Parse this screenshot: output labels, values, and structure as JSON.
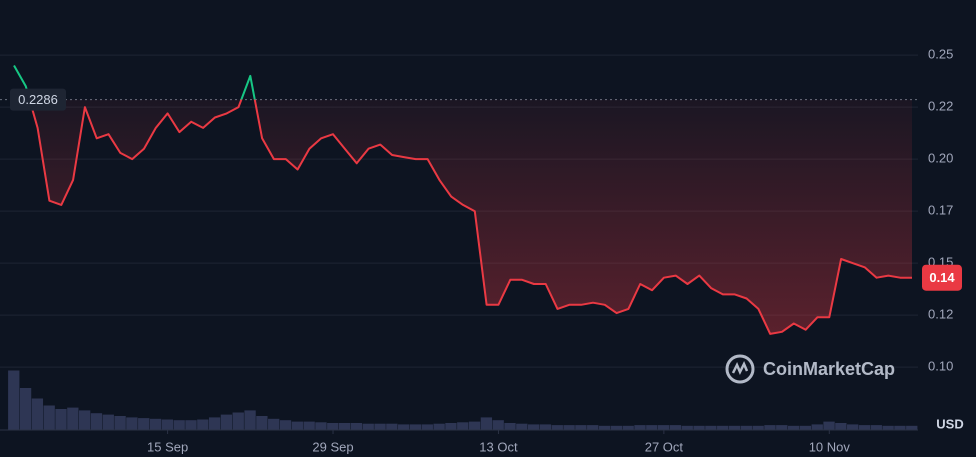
{
  "chart_data": {
    "type": "line",
    "categories": [
      null,
      null,
      null,
      null,
      null,
      null,
      null,
      null,
      null,
      null,
      null,
      null,
      null,
      "15 Sep",
      null,
      null,
      null,
      null,
      null,
      null,
      null,
      null,
      null,
      null,
      null,
      null,
      null,
      "29 Sep",
      null,
      null,
      null,
      null,
      null,
      null,
      null,
      null,
      null,
      null,
      null,
      null,
      null,
      "13 Oct",
      null,
      null,
      null,
      null,
      null,
      null,
      null,
      null,
      null,
      null,
      null,
      null,
      null,
      "27 Oct",
      null,
      null,
      null,
      null,
      null,
      null,
      null,
      null,
      null,
      null,
      null,
      null,
      null,
      "10 Nov",
      null,
      null,
      null,
      null,
      null,
      null,
      null
    ],
    "series": [
      {
        "values": [
          0.245,
          0.235,
          0.215,
          0.18,
          0.178,
          0.19,
          0.225,
          0.21,
          0.212,
          0.203,
          0.2,
          0.205,
          0.215,
          0.222,
          0.213,
          0.218,
          0.215,
          0.22,
          0.222,
          0.225,
          0.24,
          0.21,
          0.2,
          0.2,
          0.195,
          0.205,
          0.21,
          0.212,
          0.205,
          0.198,
          0.205,
          0.207,
          0.202,
          0.201,
          0.2,
          0.2,
          0.19,
          0.182,
          0.178,
          0.175,
          0.13,
          0.13,
          0.142,
          0.142,
          0.14,
          0.14,
          0.128,
          0.13,
          0.13,
          0.131,
          0.13,
          0.126,
          0.128,
          0.14,
          0.137,
          0.143,
          0.144,
          0.14,
          0.144,
          0.138,
          0.135,
          0.135,
          0.133,
          0.128,
          0.116,
          0.117,
          0.121,
          0.118,
          0.124,
          0.124,
          0.152,
          0.15,
          0.148,
          0.143,
          0.144,
          0.143,
          0.143
        ],
        "color_above": "#16c784",
        "color_below": "#ea3943"
      }
    ],
    "volume": {
      "values": [
        85,
        60,
        45,
        35,
        30,
        32,
        28,
        24,
        22,
        20,
        18,
        17,
        16,
        15,
        14,
        14,
        15,
        18,
        22,
        25,
        28,
        20,
        16,
        14,
        12,
        12,
        11,
        10,
        10,
        10,
        9,
        9,
        9,
        8,
        8,
        8,
        9,
        10,
        11,
        12,
        18,
        14,
        10,
        9,
        8,
        8,
        7,
        7,
        7,
        7,
        6,
        6,
        6,
        7,
        7,
        7,
        7,
        6,
        6,
        6,
        6,
        6,
        6,
        6,
        7,
        7,
        6,
        6,
        8,
        12,
        10,
        8,
        7,
        7,
        6,
        6,
        6
      ],
      "ylim": [
        0,
        100
      ],
      "color": "#2e3654"
    },
    "reference_value": 0.2286,
    "last_price_label": "0.14",
    "currency": "USD",
    "watermark": "CoinMarketCap",
    "ylim": [
      0.0698,
      0.2765
    ],
    "yticks": [
      0.25,
      {
        "value": 0.225,
        "label": "0.22"
      },
      {
        "value": 0.2,
        "label": "0.20"
      },
      {
        "value": 0.175,
        "label": "0.17"
      },
      0.15,
      {
        "value": 0.125,
        "label": "0.12"
      },
      {
        "value": 0.1,
        "label": "0.10"
      }
    ],
    "grid": true
  }
}
